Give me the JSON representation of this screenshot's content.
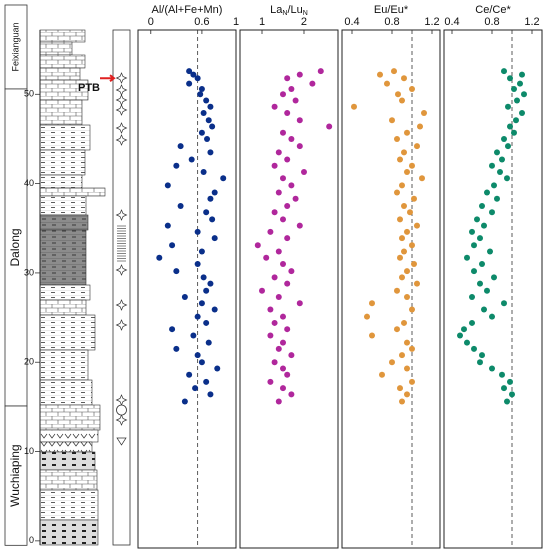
{
  "column": {
    "ylim": [
      -0.8,
      57.2
    ],
    "yticks": [
      0,
      10,
      20,
      30,
      40,
      50
    ],
    "formations": [
      {
        "name": "Feixianguan",
        "top": 60,
        "base": 50.6
      },
      {
        "name": "Dalong",
        "top": 50.6,
        "base": 15.1
      },
      {
        "name": "Wuchiaping",
        "top": 15.1,
        "base": -0.5
      }
    ],
    "boundary": {
      "label": "PTB",
      "depth": 51.8
    }
  },
  "chart_data": [
    {
      "type": "scatter",
      "title_parts": [
        "Al/(Al+Fe+Mn)"
      ],
      "color": "#0a2f8a",
      "xlim": [
        -0.15,
        1
      ],
      "xticks": [
        0,
        0.6,
        1
      ],
      "ylim": [
        -0.8,
        57.2
      ],
      "reference_line": 0.55,
      "x": [
        0.45,
        0.5,
        0.55,
        0.45,
        0.6,
        0.58,
        0.65,
        0.7,
        0.62,
        0.68,
        0.72,
        0.6,
        0.66,
        0.35,
        0.7,
        0.48,
        0.3,
        0.62,
        0.85,
        0.2,
        0.75,
        0.7,
        0.35,
        0.65,
        0.72,
        0.2,
        0.55,
        0.75,
        0.25,
        0.6,
        0.1,
        0.55,
        0.3,
        0.62,
        0.7,
        0.65,
        0.4,
        0.6,
        0.75,
        0.55,
        0.65,
        0.25,
        0.5,
        0.68,
        0.3,
        0.55,
        0.6,
        0.78,
        0.45,
        0.65,
        0.52,
        0.7,
        0.4
      ],
      "y": [
        52.6,
        52.2,
        51.8,
        51.2,
        50.6,
        50.0,
        49.3,
        48.6,
        47.9,
        47.1,
        46.4,
        45.7,
        45.0,
        44.2,
        43.5,
        42.7,
        42.0,
        41.3,
        40.6,
        39.8,
        39.0,
        38.3,
        37.5,
        36.8,
        36.0,
        35.3,
        34.6,
        33.9,
        33.1,
        32.4,
        31.7,
        31.0,
        30.2,
        29.5,
        28.8,
        28.0,
        27.3,
        26.6,
        25.9,
        25.1,
        24.4,
        23.7,
        23.0,
        22.2,
        21.5,
        20.8,
        20.0,
        19.3,
        18.6,
        17.8,
        17.1,
        16.4,
        15.6
      ]
    },
    {
      "type": "scatter",
      "title_parts": [
        "La",
        "N",
        "/Lu",
        "N"
      ],
      "color": "#b0279c",
      "xlim": [
        0.476,
        2.81
      ],
      "xticks": [
        1,
        2
      ],
      "ylim": [
        -0.8,
        57.2
      ],
      "x": [
        2.4,
        1.9,
        1.6,
        2.2,
        1.7,
        1.5,
        1.8,
        1.3,
        1.6,
        1.9,
        2.6,
        1.5,
        1.7,
        1.9,
        1.4,
        1.6,
        1.3,
        2.0,
        1.5,
        1.7,
        1.4,
        1.8,
        1.6,
        1.3,
        1.5,
        1.9,
        1.2,
        1.6,
        0.9,
        1.4,
        1.1,
        1.5,
        1.7,
        1.3,
        1.6,
        1.0,
        1.4,
        1.9,
        1.2,
        1.5,
        1.3,
        1.6,
        1.2,
        1.5,
        1.4,
        1.7,
        1.3,
        1.5,
        1.6,
        1.2,
        1.5,
        1.7,
        1.4
      ],
      "y": [
        52.6,
        52.2,
        51.8,
        51.2,
        50.6,
        50.0,
        49.3,
        48.6,
        47.9,
        47.1,
        46.4,
        45.7,
        45.0,
        44.2,
        43.5,
        42.7,
        42.0,
        41.3,
        40.6,
        39.8,
        39.0,
        38.3,
        37.5,
        36.8,
        36.0,
        35.3,
        34.6,
        33.9,
        33.1,
        32.4,
        31.7,
        31.0,
        30.2,
        29.5,
        28.8,
        28.0,
        27.3,
        26.6,
        25.9,
        25.1,
        24.4,
        23.7,
        23.0,
        22.2,
        21.5,
        20.8,
        20.0,
        19.3,
        18.6,
        17.8,
        17.1,
        16.4,
        15.6
      ]
    },
    {
      "type": "scatter",
      "title_parts": [
        "Eu/Eu*"
      ],
      "color": "#e0963c",
      "xlim": [
        0.3,
        1.28
      ],
      "xticks": [
        0.4,
        0.8,
        1.2
      ],
      "ylim": [
        -0.8,
        57.2
      ],
      "reference_line": 1.0,
      "x": [
        0.82,
        0.68,
        0.92,
        0.75,
        1.0,
        0.86,
        0.9,
        0.42,
        1.12,
        0.8,
        1.08,
        0.95,
        0.85,
        1.05,
        0.92,
        0.88,
        1.0,
        0.95,
        1.1,
        0.9,
        0.85,
        1.02,
        0.92,
        0.98,
        0.88,
        1.05,
        0.95,
        0.9,
        1.0,
        0.92,
        0.88,
        1.02,
        0.95,
        0.9,
        1.05,
        0.85,
        0.95,
        0.6,
        1.0,
        0.55,
        0.92,
        0.85,
        0.6,
        0.95,
        1.0,
        0.9,
        0.8,
        0.95,
        0.7,
        1.0,
        0.88,
        0.95,
        0.9
      ],
      "y": [
        52.6,
        52.2,
        51.8,
        51.2,
        50.6,
        50.0,
        49.3,
        48.6,
        47.9,
        47.1,
        46.4,
        45.7,
        45.0,
        44.2,
        43.5,
        42.7,
        42.0,
        41.3,
        40.6,
        39.8,
        39.0,
        38.3,
        37.5,
        36.8,
        36.0,
        35.3,
        34.6,
        33.9,
        33.1,
        32.4,
        31.7,
        31.0,
        30.2,
        29.5,
        28.8,
        28.0,
        27.3,
        26.6,
        25.9,
        25.1,
        24.4,
        23.7,
        23.0,
        22.2,
        21.5,
        20.8,
        20.0,
        19.3,
        18.6,
        17.8,
        17.1,
        16.4,
        15.6
      ]
    },
    {
      "type": "scatter",
      "title_parts": [
        "Ce/Ce*"
      ],
      "color": "#0d8a6a",
      "xlim": [
        0.32,
        1.3
      ],
      "xticks": [
        0.4,
        0.8,
        1.2
      ],
      "ylim": [
        -0.8,
        57.2
      ],
      "reference_line": 1.0,
      "x": [
        0.92,
        1.1,
        0.98,
        1.08,
        1.02,
        1.12,
        1.05,
        0.96,
        1.1,
        1.04,
        0.98,
        1.02,
        0.92,
        0.96,
        0.85,
        0.9,
        0.8,
        0.88,
        0.95,
        0.82,
        0.75,
        0.85,
        0.7,
        0.8,
        0.65,
        0.72,
        0.6,
        0.68,
        0.62,
        0.78,
        0.55,
        0.7,
        0.62,
        0.82,
        0.68,
        0.75,
        0.6,
        0.92,
        0.72,
        0.8,
        0.6,
        0.52,
        0.48,
        0.55,
        0.62,
        0.7,
        0.68,
        0.8,
        0.9,
        0.98,
        0.92,
        1.0,
        0.95
      ],
      "y": [
        52.6,
        52.2,
        51.8,
        51.2,
        50.6,
        50.0,
        49.3,
        48.6,
        47.9,
        47.1,
        46.4,
        45.7,
        45.0,
        44.2,
        43.5,
        42.7,
        42.0,
        41.3,
        40.6,
        39.8,
        39.0,
        38.3,
        37.5,
        36.8,
        36.0,
        35.3,
        34.6,
        33.9,
        33.1,
        32.4,
        31.7,
        31.0,
        30.2,
        29.5,
        28.8,
        28.0,
        27.3,
        26.6,
        25.9,
        25.1,
        24.4,
        23.7,
        23.0,
        22.2,
        21.5,
        20.8,
        20.0,
        19.3,
        18.6,
        17.8,
        17.1,
        16.4,
        15.6
      ]
    }
  ]
}
